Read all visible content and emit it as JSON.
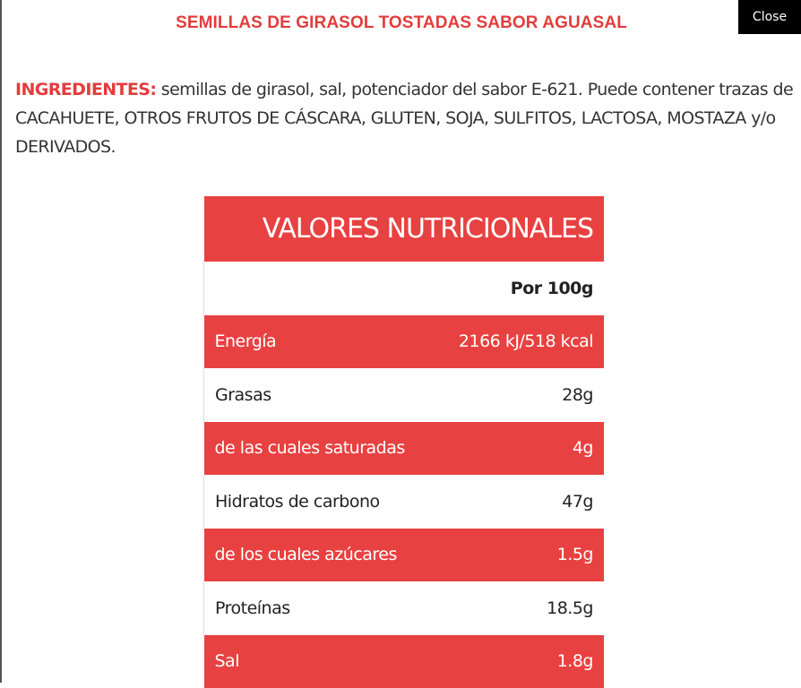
{
  "close_label": "Close",
  "title": "SEMILLAS DE GIRASOL TOSTADAS SABOR AGUASAL",
  "ingredients": {
    "label": "INGREDIENTES:",
    "text": " semillas de girasol, sal, potenciador del sabor E-621. Puede contener trazas de CACAHUETE, OTROS FRUTOS DE CÁSCARA, GLUTEN, SOJA, SULFITOS, LACTOSA, MOSTAZA y/o DERIVADOS."
  },
  "nutrition": {
    "title": "VALORES NUTRICIONALES",
    "column_header": "Por 100g",
    "rows": [
      {
        "label": "Energía",
        "value": "2166 kJ/518 kcal"
      },
      {
        "label": "Grasas",
        "value": "28g"
      },
      {
        "label": "de las cuales saturadas",
        "value": "4g"
      },
      {
        "label": "Hidratos de carbono",
        "value": "47g"
      },
      {
        "label": "de los cuales azúcares",
        "value": "1.5g"
      },
      {
        "label": "Proteínas",
        "value": "18.5g"
      },
      {
        "label": "Sal",
        "value": "1.8g"
      }
    ]
  },
  "colors": {
    "accent": "#e84141",
    "close_bg": "#000000"
  }
}
